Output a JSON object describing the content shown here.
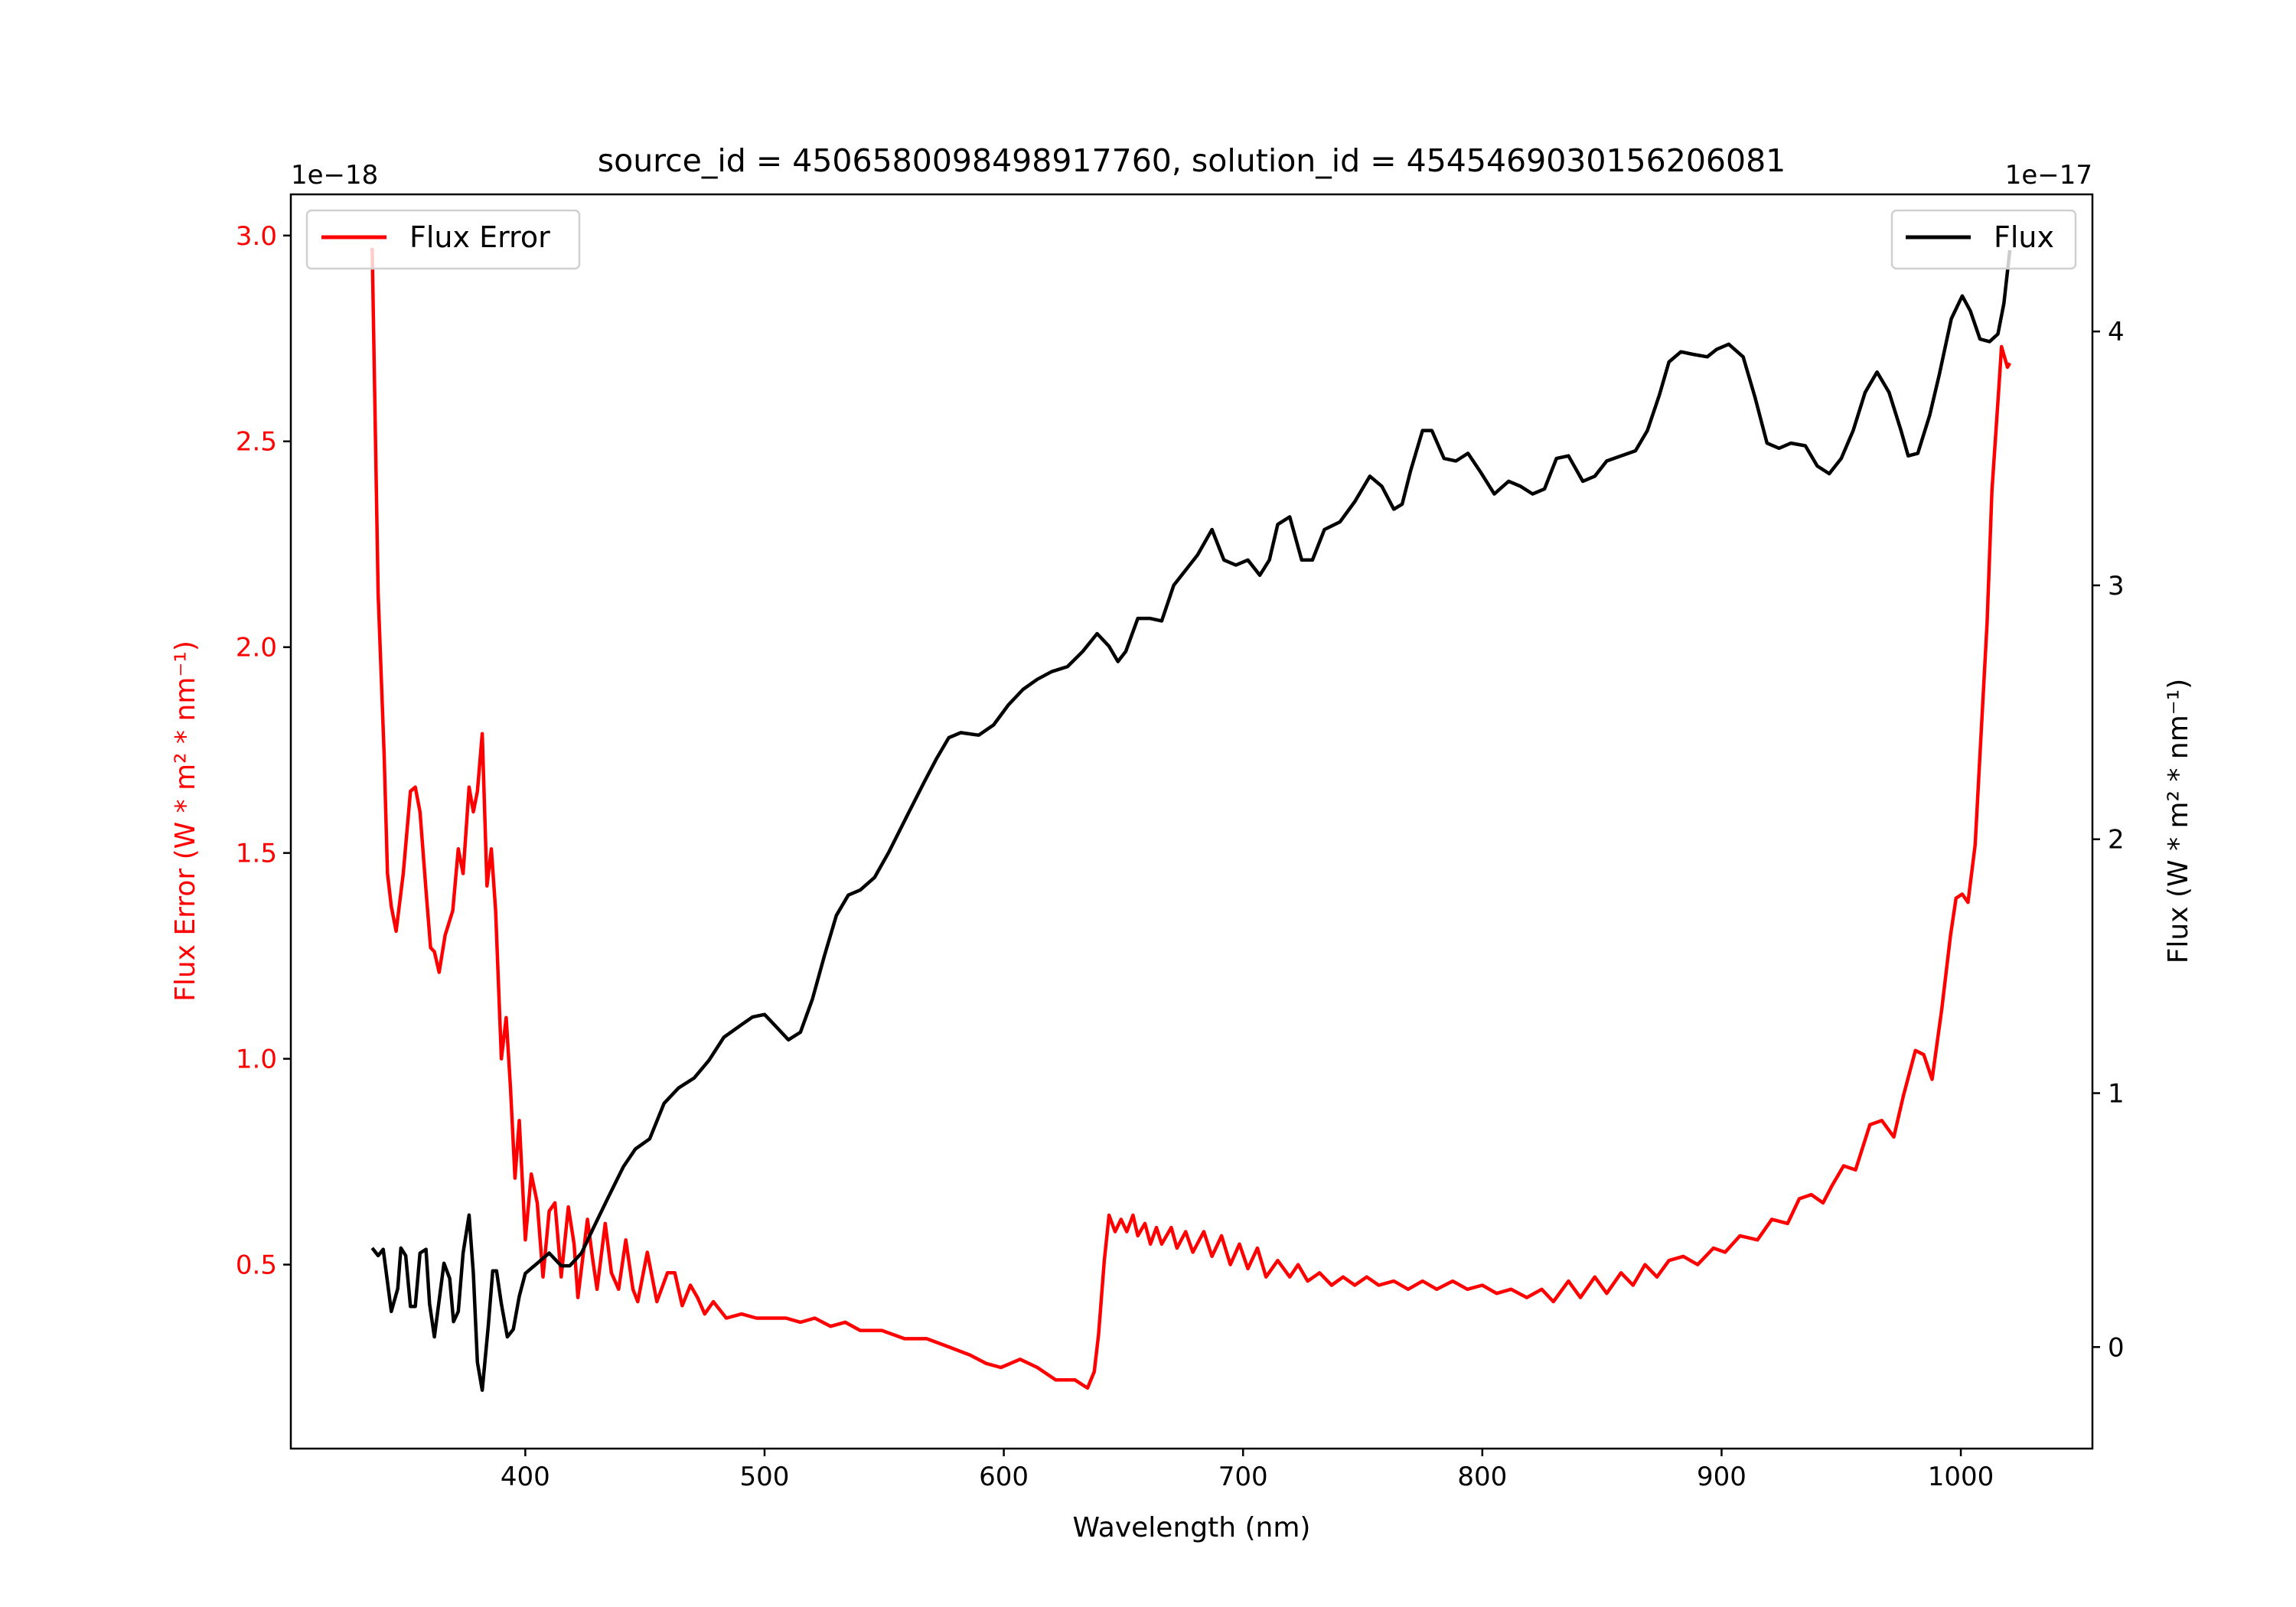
{
  "chart_data": {
    "type": "line",
    "title": "source_id = 4506580098498917760, solution_id = 4545469030156206081",
    "xlabel": "Wavelength (nm)",
    "ylabel_left": "Flux Error (W * m² * nm⁻¹)",
    "ylabel_right": "Flux (W * m² * nm⁻¹)",
    "offset_left": "1e−18",
    "offset_right": "1e−17",
    "xlim": [
      302,
      1055
    ],
    "ylim_left": [
      0.053,
      3.1
    ],
    "ylim_right": [
      -0.4,
      4.54
    ],
    "xticks": [
      400,
      500,
      600,
      700,
      800,
      900,
      1000
    ],
    "xtick_labels": [
      "400",
      "500",
      "600",
      "700",
      "800",
      "900",
      "1000"
    ],
    "yticks_left": [
      0.5,
      1.0,
      1.5,
      2.0,
      2.5,
      3.0
    ],
    "ytick_labels_left": [
      "0.5",
      "1.0",
      "1.5",
      "2.0",
      "2.5",
      "3.0"
    ],
    "yticks_right": [
      0,
      1,
      2,
      3,
      4
    ],
    "ytick_labels_right": [
      "0",
      "1",
      "2",
      "3",
      "4"
    ],
    "grid": false,
    "colors": {
      "flux_error": "#ff0000",
      "flux": "#000000",
      "axis": "#000000"
    },
    "legends": [
      {
        "label": "Flux Error",
        "placement": "upper-left",
        "series": "flux_error"
      },
      {
        "label": "Flux",
        "placement": "upper-right",
        "series": "flux"
      }
    ],
    "series": [
      {
        "name": "Flux Error",
        "axis": "left",
        "color": "#ff0000",
        "x": [
          336,
          338.5,
          341,
          342.4,
          344,
          346,
          349,
          352,
          354,
          356,
          358.5,
          360.4,
          362,
          364,
          366.5,
          369.7,
          372,
          374,
          376.5,
          378.3,
          380,
          382,
          384,
          385.8,
          387.6,
          390,
          392,
          393.8,
          395.7,
          397.5,
          400,
          402.5,
          405,
          407.4,
          410,
          412.4,
          415,
          418,
          420.4,
          422,
          426,
          428,
          430,
          433.4,
          436,
          439,
          442,
          445,
          447,
          451,
          455,
          459.4,
          462.5,
          465.6,
          469,
          472,
          475,
          478.6,
          484,
          490.4,
          496.6,
          502.8,
          509,
          515,
          521,
          527.6,
          533.7,
          540,
          549,
          558.5,
          567.8,
          577,
          586,
          592.6,
          598.8,
          606.8,
          614,
          621.7,
          629.7,
          635,
          637.8,
          639.6,
          642,
          644,
          646.5,
          649,
          651.4,
          654,
          656,
          659,
          661.3,
          663.8,
          666,
          670,
          672.4,
          676,
          679,
          683.6,
          687,
          691,
          694.7,
          698.5,
          702,
          706,
          709.6,
          714.5,
          719.5,
          723,
          727,
          732,
          737,
          741.8,
          746.7,
          751.7,
          756.7,
          763,
          769,
          775,
          781,
          787.6,
          793.8,
          800,
          806,
          812,
          818.6,
          824.8,
          829.7,
          836,
          841,
          847,
          852,
          858,
          863,
          868,
          873,
          878,
          884,
          890,
          896.6,
          901.5,
          907.7,
          915,
          921,
          927.6,
          932.5,
          937.5,
          942.4,
          946,
          951,
          956,
          962,
          967,
          972,
          976,
          981,
          984.5,
          988,
          992,
          995.7,
          998,
          1000.6,
          1003,
          1006,
          1008,
          1011,
          1013,
          1016,
          1017,
          1019.5,
          1020.5
        ],
        "y": [
          2.97,
          2.13,
          1.74,
          1.45,
          1.37,
          1.31,
          1.45,
          1.65,
          1.66,
          1.6,
          1.41,
          1.27,
          1.26,
          1.21,
          1.3,
          1.36,
          1.51,
          1.45,
          1.66,
          1.6,
          1.65,
          1.79,
          1.42,
          1.51,
          1.36,
          1.0,
          1.1,
          0.93,
          0.71,
          0.85,
          0.56,
          0.72,
          0.65,
          0.47,
          0.63,
          0.65,
          0.47,
          0.64,
          0.55,
          0.42,
          0.61,
          0.52,
          0.44,
          0.6,
          0.48,
          0.44,
          0.56,
          0.44,
          0.41,
          0.53,
          0.41,
          0.48,
          0.48,
          0.4,
          0.45,
          0.42,
          0.38,
          0.41,
          0.37,
          0.38,
          0.37,
          0.37,
          0.37,
          0.36,
          0.37,
          0.35,
          0.36,
          0.34,
          0.34,
          0.32,
          0.32,
          0.3,
          0.28,
          0.26,
          0.25,
          0.27,
          0.25,
          0.22,
          0.22,
          0.2,
          0.24,
          0.33,
          0.51,
          0.62,
          0.58,
          0.61,
          0.58,
          0.62,
          0.57,
          0.6,
          0.55,
          0.59,
          0.55,
          0.59,
          0.54,
          0.58,
          0.53,
          0.58,
          0.52,
          0.57,
          0.5,
          0.55,
          0.49,
          0.54,
          0.47,
          0.51,
          0.47,
          0.5,
          0.46,
          0.48,
          0.45,
          0.47,
          0.45,
          0.47,
          0.45,
          0.46,
          0.44,
          0.46,
          0.44,
          0.46,
          0.44,
          0.45,
          0.43,
          0.44,
          0.42,
          0.44,
          0.41,
          0.46,
          0.42,
          0.47,
          0.43,
          0.48,
          0.45,
          0.5,
          0.47,
          0.51,
          0.52,
          0.5,
          0.54,
          0.53,
          0.57,
          0.56,
          0.61,
          0.6,
          0.66,
          0.67,
          0.65,
          0.69,
          0.74,
          0.73,
          0.84,
          0.85,
          0.81,
          0.91,
          1.02,
          1.01,
          0.95,
          1.12,
          1.3,
          1.39,
          1.4,
          1.38,
          1.52,
          1.74,
          2.06,
          2.38,
          2.64,
          2.73,
          2.68,
          2.69
        ]
      },
      {
        "name": "Flux",
        "axis": "right",
        "color": "#000000",
        "x": [
          336,
          338.5,
          340.6,
          344,
          346.7,
          348,
          350,
          352,
          354,
          356,
          358.5,
          360,
          362,
          366,
          368.4,
          370,
          372,
          374,
          376.5,
          378.3,
          380,
          382,
          384.5,
          386.4,
          388,
          390,
          392.5,
          395,
          397.5,
          400,
          405,
          410,
          415,
          418.6,
          423.5,
          428.5,
          434.7,
          441,
          446,
          452,
          458,
          464,
          470.6,
          476.8,
          483,
          490.4,
          495,
          500,
          505,
          510,
          515,
          520,
          525,
          530,
          535,
          540,
          546,
          552,
          560,
          567,
          572,
          577,
          582,
          589.5,
          595.7,
          602,
          608,
          614,
          620,
          626.6,
          633,
          639,
          644,
          647.7,
          651,
          656,
          661,
          666,
          671,
          676,
          681,
          687,
          692,
          697,
          702,
          707,
          711,
          714.5,
          719.5,
          724.5,
          729,
          734,
          740.5,
          746.7,
          753,
          758,
          763,
          766.5,
          770,
          775,
          778.9,
          784,
          789,
          794,
          799,
          805,
          811,
          816,
          821,
          826,
          831,
          836,
          842,
          847,
          852,
          858,
          864,
          869,
          874,
          878,
          883,
          888,
          894,
          898,
          903,
          909,
          914,
          919,
          924,
          929,
          935,
          940,
          945,
          950,
          955,
          960,
          965,
          970,
          975,
          978,
          982,
          987,
          991,
          996,
          1000.6,
          1004,
          1008,
          1012,
          1015.5,
          1018,
          1020.5
        ],
        "y": [
          0.39,
          0.36,
          0.385,
          0.14,
          0.23,
          0.39,
          0.36,
          0.16,
          0.16,
          0.37,
          0.385,
          0.17,
          0.04,
          0.33,
          0.27,
          0.1,
          0.14,
          0.37,
          0.52,
          0.29,
          -0.06,
          -0.17,
          0.08,
          0.3,
          0.3,
          0.17,
          0.04,
          0.07,
          0.2,
          0.29,
          0.33,
          0.37,
          0.32,
          0.32,
          0.37,
          0.47,
          0.59,
          0.71,
          0.78,
          0.82,
          0.96,
          1.02,
          1.06,
          1.13,
          1.22,
          1.27,
          1.3,
          1.31,
          1.26,
          1.21,
          1.24,
          1.37,
          1.54,
          1.7,
          1.78,
          1.8,
          1.85,
          1.95,
          2.1,
          2.23,
          2.32,
          2.4,
          2.42,
          2.41,
          2.45,
          2.53,
          2.59,
          2.63,
          2.66,
          2.68,
          2.74,
          2.81,
          2.76,
          2.7,
          2.74,
          2.87,
          2.87,
          2.86,
          3.0,
          3.06,
          3.12,
          3.22,
          3.1,
          3.08,
          3.1,
          3.04,
          3.1,
          3.24,
          3.27,
          3.1,
          3.1,
          3.22,
          3.25,
          3.33,
          3.43,
          3.39,
          3.3,
          3.32,
          3.45,
          3.61,
          3.61,
          3.5,
          3.49,
          3.52,
          3.45,
          3.36,
          3.41,
          3.39,
          3.36,
          3.38,
          3.5,
          3.51,
          3.41,
          3.43,
          3.49,
          3.51,
          3.53,
          3.61,
          3.75,
          3.88,
          3.92,
          3.91,
          3.9,
          3.93,
          3.95,
          3.9,
          3.74,
          3.56,
          3.54,
          3.56,
          3.55,
          3.47,
          3.44,
          3.5,
          3.61,
          3.76,
          3.84,
          3.76,
          3.61,
          3.51,
          3.52,
          3.67,
          3.83,
          4.05,
          4.14,
          4.08,
          3.97,
          3.96,
          3.99,
          4.11,
          4.32
        ]
      }
    ]
  }
}
